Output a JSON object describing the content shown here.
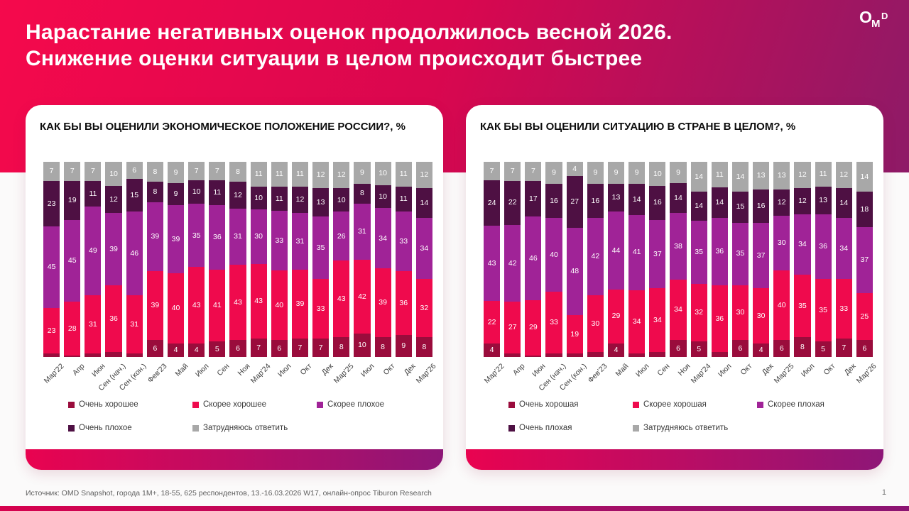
{
  "header": {
    "title_line1": "Нарастание негативных оценок продолжилось весной 2026.",
    "title_line2": "Снижение оценки ситуации в целом происходит быстрее",
    "logo": {
      "o": "O",
      "m": "M",
      "d": "D"
    }
  },
  "footer": {
    "source": "Источник: OMD Snapshot, города 1М+, 18-55, 625  респондентов, 13.-16.03.2026 W17, онлайн-опрос Tiburon Research",
    "page_number": "1"
  },
  "colors": {
    "header_left": "#f5094c",
    "header_mid": "#d9074f",
    "header_right": "#8e1a67",
    "strip_left": "#e90350",
    "strip_right": "#8e1677",
    "bar_left": "#d6024e",
    "bar_right": "#8c1573"
  },
  "chart_data": [
    {
      "type": "bar",
      "stacked": true,
      "title": "КАК БЫ ВЫ ОЦЕНИЛИ ЭКОНОМИЧЕСКОЕ ПОЛОЖЕНИЕ РОССИИ?, %",
      "xlabel": "",
      "ylabel": "",
      "ylim": [
        0,
        100
      ],
      "grid": false,
      "legend_position": "bottom",
      "label_min_show": 4,
      "categories": [
        "Мар'22",
        "Апр",
        "Июн",
        "Сен (нач.)",
        "Сен (кон.)",
        "Фев'23",
        "Май",
        "Июл",
        "Сен",
        "Ноя",
        "Мар'24",
        "Июл",
        "Окт",
        "Дек",
        "Мар'25",
        "Июл",
        "Окт",
        "Дек",
        "Мар'26"
      ],
      "series": [
        {
          "name": "Очень хорошее",
          "color": "#9a0c3c",
          "values": [
            2,
            1,
            2,
            3,
            2,
            6,
            4,
            4,
            5,
            6,
            7,
            6,
            7,
            7,
            8,
            10,
            8,
            9,
            8
          ]
        },
        {
          "name": "Скорее хорошее",
          "color": "#ef0a4d",
          "values": [
            23,
            28,
            31,
            36,
            31,
            39,
            40,
            43,
            41,
            43,
            43,
            40,
            39,
            33,
            43,
            42,
            39,
            36,
            32
          ]
        },
        {
          "name": "Скорее плохое",
          "color": "#a02397",
          "values": [
            45,
            45,
            49,
            39,
            46,
            39,
            39,
            35,
            36,
            31,
            30,
            33,
            31,
            35,
            26,
            31,
            34,
            33,
            34
          ]
        },
        {
          "name": "Очень плохое",
          "color": "#4e1043",
          "values": [
            23,
            19,
            11,
            12,
            15,
            8,
            9,
            10,
            11,
            12,
            10,
            11,
            12,
            13,
            10,
            8,
            10,
            11,
            14
          ]
        },
        {
          "name": "Затрудняюсь ответить",
          "color": "#a8a8a8",
          "values": [
            7,
            7,
            7,
            10,
            6,
            8,
            9,
            7,
            7,
            8,
            11,
            11,
            11,
            12,
            12,
            9,
            10,
            11,
            12
          ]
        }
      ]
    },
    {
      "type": "bar",
      "stacked": true,
      "title": "КАК БЫ ВЫ ОЦЕНИЛИ СИТУАЦИЮ В СТРАНЕ В ЦЕЛОМ?, %",
      "xlabel": "",
      "ylabel": "",
      "ylim": [
        0,
        100
      ],
      "grid": false,
      "legend_position": "bottom",
      "label_min_show": 4,
      "categories": [
        "Мар'22",
        "Апр",
        "Июн",
        "Сен (нач.)",
        "Сен (кон.)",
        "Фев'23",
        "Май",
        "Июл",
        "Сен",
        "Ноя",
        "Мар'24",
        "Июл",
        "Окт",
        "Дек",
        "Мар'25",
        "Июл",
        "Окт",
        "Дек",
        "Мар'26"
      ],
      "series": [
        {
          "name": "Очень хорошая",
          "color": "#9a0c3c",
          "values": [
            4,
            2,
            1,
            2,
            2,
            3,
            4,
            2,
            3,
            6,
            5,
            3,
            6,
            4,
            6,
            8,
            5,
            7,
            6
          ]
        },
        {
          "name": "Скорее хорошая",
          "color": "#ef0a4d",
          "values": [
            22,
            27,
            29,
            33,
            19,
            30,
            29,
            34,
            34,
            34,
            32,
            36,
            30,
            30,
            40,
            35,
            35,
            33,
            25
          ]
        },
        {
          "name": "Скорее плохая",
          "color": "#a02397",
          "values": [
            43,
            42,
            46,
            40,
            48,
            42,
            44,
            41,
            37,
            38,
            35,
            36,
            35,
            37,
            30,
            34,
            36,
            34,
            37
          ]
        },
        {
          "name": "Очень плохая",
          "color": "#4e1043",
          "values": [
            24,
            22,
            17,
            16,
            27,
            16,
            13,
            14,
            16,
            14,
            14,
            14,
            15,
            16,
            12,
            12,
            13,
            14,
            18
          ]
        },
        {
          "name": "Затрудняюсь ответить",
          "color": "#a8a8a8",
          "values": [
            7,
            7,
            7,
            9,
            4,
            9,
            9,
            9,
            10,
            9,
            14,
            11,
            14,
            13,
            13,
            12,
            11,
            12,
            14
          ]
        }
      ]
    }
  ]
}
